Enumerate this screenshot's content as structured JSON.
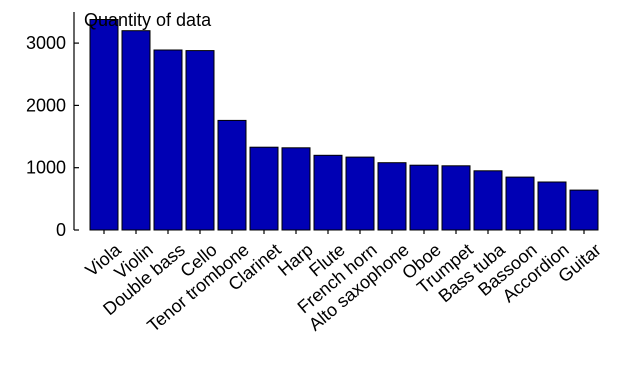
{
  "chart_data": {
    "type": "bar",
    "title": "",
    "xlabel": "",
    "ylabel": "Quantity of data",
    "ylim": [
      0,
      3500
    ],
    "yticks": [
      0,
      1000,
      2000,
      3000
    ],
    "grid": false,
    "legend": "none",
    "colors": {
      "bar_fill": "#0000b4",
      "bar_stroke": "#000000",
      "axis": "#000000"
    },
    "categories": [
      "Viola",
      "Violin",
      "Double bass",
      "Cello",
      "Tenor trombone",
      "Clarinet",
      "Harp",
      "Flute",
      "French horn",
      "Alto saxophone",
      "Oboe",
      "Trumpet",
      "Bass tuba",
      "Bassoon",
      "Accordion",
      "Guitar"
    ],
    "values": [
      3380,
      3200,
      2890,
      2880,
      1760,
      1330,
      1320,
      1200,
      1170,
      1080,
      1040,
      1030,
      950,
      850,
      770,
      640
    ]
  }
}
